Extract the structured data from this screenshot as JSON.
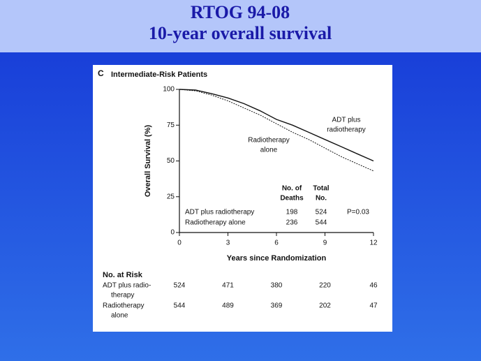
{
  "slide": {
    "title_lines": [
      "RTOG 94-08",
      "10-year overall survival"
    ]
  },
  "chart_data": {
    "type": "line",
    "panel_label": "C",
    "title": "Intermediate-Risk Patients",
    "x_label": "Years since Randomization",
    "y_label": "Overall Survival (%)",
    "x": [
      0,
      1,
      2,
      3,
      4,
      5,
      6,
      7,
      8,
      9,
      10,
      11,
      12
    ],
    "xlim": [
      0,
      12
    ],
    "xticks": [
      0,
      3,
      6,
      9,
      12
    ],
    "ylim": [
      0,
      100
    ],
    "yticks": [
      0,
      25,
      50,
      75,
      100
    ],
    "series": [
      {
        "name": "ADT plus radiotherapy",
        "color": "#111111",
        "line_style": "solid",
        "values": [
          100,
          99.5,
          97,
          94,
          90,
          85,
          79,
          75,
          70,
          65,
          60,
          55,
          50
        ]
      },
      {
        "name": "Radiotherapy alone",
        "color": "#111111",
        "line_style": "dashed",
        "values": [
          100,
          99,
          96,
          92,
          87,
          82,
          76,
          70,
          65,
          59,
          53,
          48,
          43
        ]
      }
    ],
    "annotations": [
      {
        "lines": [
          "ADT plus",
          "radiotherapy"
        ]
      },
      {
        "lines": [
          "Radiotherapy",
          "alone"
        ]
      }
    ],
    "inset_table": {
      "headers": [
        [
          "No. of",
          "Deaths"
        ],
        [
          "Total",
          "No."
        ]
      ],
      "rows": [
        {
          "name": "ADT plus radiotherapy",
          "deaths": "198",
          "total": "524"
        },
        {
          "name": "Radiotherapy alone",
          "deaths": "236",
          "total": "544"
        }
      ],
      "p_value": "P=0.03"
    },
    "risk_table": {
      "title": "No. at Risk",
      "rows": [
        {
          "name_lines": [
            "ADT plus radio-",
            "therapy"
          ],
          "counts": [
            "524",
            "471",
            "380",
            "220",
            "46"
          ]
        },
        {
          "name_lines": [
            "Radiotherapy",
            "alone"
          ],
          "counts": [
            "544",
            "489",
            "369",
            "202",
            "47"
          ]
        }
      ]
    }
  }
}
